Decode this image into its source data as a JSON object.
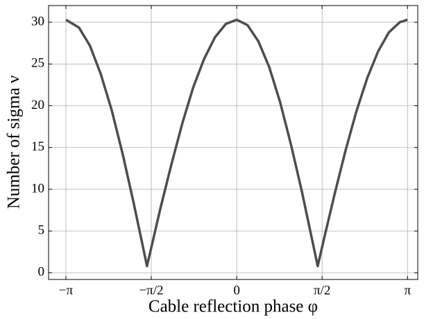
{
  "chart_data": {
    "type": "line",
    "xlabel": "Cable reflection phase φ",
    "ylabel": "Number of sigma ν",
    "x": [
      -3.14,
      -2.9,
      -2.7,
      -2.5,
      -2.3,
      -2.1,
      -1.9,
      -1.75,
      -1.65,
      -1.55,
      -1.4,
      -1.2,
      -1.0,
      -0.8,
      -0.6,
      -0.4,
      -0.2,
      0,
      0.2,
      0.4,
      0.6,
      0.8,
      1.0,
      1.2,
      1.35,
      1.49,
      1.6,
      1.8,
      2.0,
      2.2,
      2.4,
      2.6,
      2.8,
      3.0,
      3.14
    ],
    "series": [
      {
        "name": "ν",
        "color": "#4d4d4d",
        "values": [
          30.3,
          29.35,
          27.2,
          23.8,
          19.5,
          14.3,
          8.5,
          3.9,
          0.8,
          3.6,
          7.8,
          13.0,
          17.9,
          22.2,
          25.6,
          28.2,
          29.8,
          30.3,
          29.65,
          27.7,
          24.6,
          20.4,
          15.3,
          9.7,
          5.1,
          0.8,
          3.9,
          9.4,
          14.6,
          19.3,
          23.3,
          26.5,
          28.8,
          30.0,
          30.3
        ]
      }
    ],
    "xlim": [
      -3.46,
      3.33
    ],
    "ylim": [
      -0.8,
      32
    ],
    "xticks": [
      {
        "value": -3.1416,
        "label": "−π"
      },
      {
        "value": -1.5708,
        "label": "−π/2"
      },
      0,
      {
        "value": 1.5708,
        "label": "π/2"
      },
      {
        "value": 3.1416,
        "label": "π"
      }
    ],
    "yticks": [
      0,
      5,
      10,
      15,
      20,
      25,
      30
    ],
    "grid": true
  }
}
